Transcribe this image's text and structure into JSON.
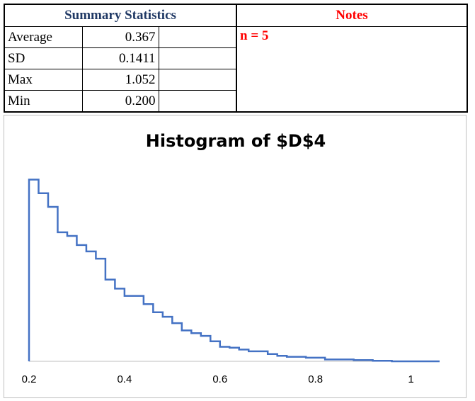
{
  "summary": {
    "header": "Summary Statistics",
    "rows": [
      {
        "label": "Average",
        "value": "0.367"
      },
      {
        "label": "SD",
        "value": "0.1411"
      },
      {
        "label": "Max",
        "value": "1.052"
      },
      {
        "label": "Min",
        "value": "0.200"
      }
    ]
  },
  "notes": {
    "header": "Notes",
    "text": "n = 5"
  },
  "colors": {
    "summary_header": "#1f3864",
    "notes_header": "#ff0000",
    "series": "#4472c4",
    "axis": "#bfbfbf"
  },
  "chart_data": {
    "type": "line",
    "title": "Histogram of $D$4",
    "xlabel": "",
    "ylabel": "",
    "xlim": [
      0.2,
      1.06
    ],
    "x_ticks": [
      "0.2",
      "0.4",
      "0.6",
      "0.8",
      "1"
    ],
    "x_tick_values": [
      0.2,
      0.4,
      0.6,
      0.8,
      1.0
    ],
    "grid": false,
    "legend": "none",
    "step": true,
    "series": [
      {
        "x": [
          0.2,
          0.22,
          0.24,
          0.26,
          0.28,
          0.3,
          0.32,
          0.34,
          0.36,
          0.38,
          0.4,
          0.44,
          0.46,
          0.48,
          0.5,
          0.52,
          0.54,
          0.56,
          0.58,
          0.6,
          0.62,
          0.64,
          0.66,
          0.7,
          0.72,
          0.74,
          0.78,
          0.82,
          0.88,
          0.92,
          0.96,
          1.06
        ],
        "y": [
          0.0,
          1.0,
          0.925,
          0.85,
          0.71,
          0.69,
          0.64,
          0.605,
          0.565,
          0.45,
          0.4,
          0.36,
          0.315,
          0.27,
          0.245,
          0.21,
          0.17,
          0.155,
          0.14,
          0.11,
          0.08,
          0.075,
          0.065,
          0.055,
          0.04,
          0.03,
          0.025,
          0.02,
          0.01,
          0.007,
          0.003,
          0.0
        ]
      }
    ],
    "ylim": [
      0,
      1.08
    ]
  }
}
